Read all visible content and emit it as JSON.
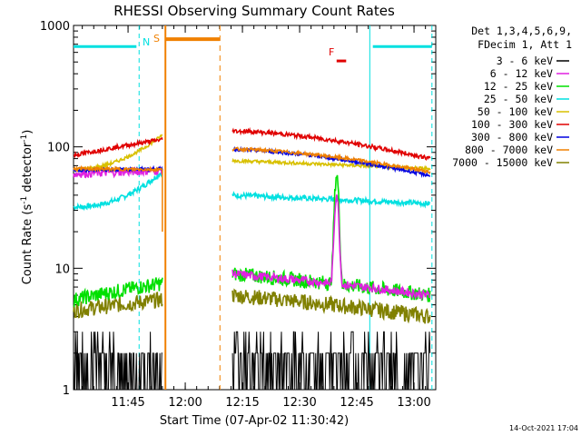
{
  "chart_data": {
    "type": "line",
    "title": "RHESSI Observing Summary Count Rates",
    "xlabel": "Start Time (07-Apr-02 11:30:42)",
    "ylabel": "Count Rate (s",
    "ylabel_sup1": "-1",
    "ylabel_mid": " detector",
    "ylabel_sup2": "-1",
    "ylabel_end": ")",
    "y_scale": "log",
    "ylim": [
      1,
      1000
    ],
    "xlim_minutes": [
      0,
      95
    ],
    "x_tick_labels": [
      "11:45",
      "12:00",
      "12:15",
      "12:30",
      "12:45",
      "13:00"
    ],
    "x_ticks_min": [
      14.3,
      29.3,
      44.3,
      59.3,
      74.3,
      89.3
    ],
    "y_tick_labels": [
      "1",
      "10",
      "100",
      "1000"
    ],
    "y_ticks": [
      1,
      10,
      100,
      1000
    ],
    "legend_header": [
      "Det 1,3,4,5,6,9,",
      "FDecim 1, Att 1"
    ],
    "series": [
      {
        "name": "3 - 6 keV",
        "color": "#000000"
      },
      {
        "name": "6 - 12 keV",
        "color": "#e020e0"
      },
      {
        "name": "12 - 25 keV",
        "color": "#00e000"
      },
      {
        "name": "25 - 50 keV",
        "color": "#00e0e0"
      },
      {
        "name": "50 - 100 keV",
        "color": "#d8c000"
      },
      {
        "name": "100 - 300 keV",
        "color": "#e00000"
      },
      {
        "name": "300 - 800 keV",
        "color": "#0000e0"
      },
      {
        "name": "800 - 7000 keV",
        "color": "#f08000"
      },
      {
        "name": "7000 - 15000 keV",
        "color": "#808000"
      }
    ],
    "flag_labels": {
      "night": "N",
      "saa": "S",
      "flare": "F"
    },
    "colors": {
      "night": "#00e0e0",
      "saa": "#f08000",
      "flare": "#e00000"
    }
  },
  "footer": {
    "date": "14-Oct-2021 17:04"
  }
}
